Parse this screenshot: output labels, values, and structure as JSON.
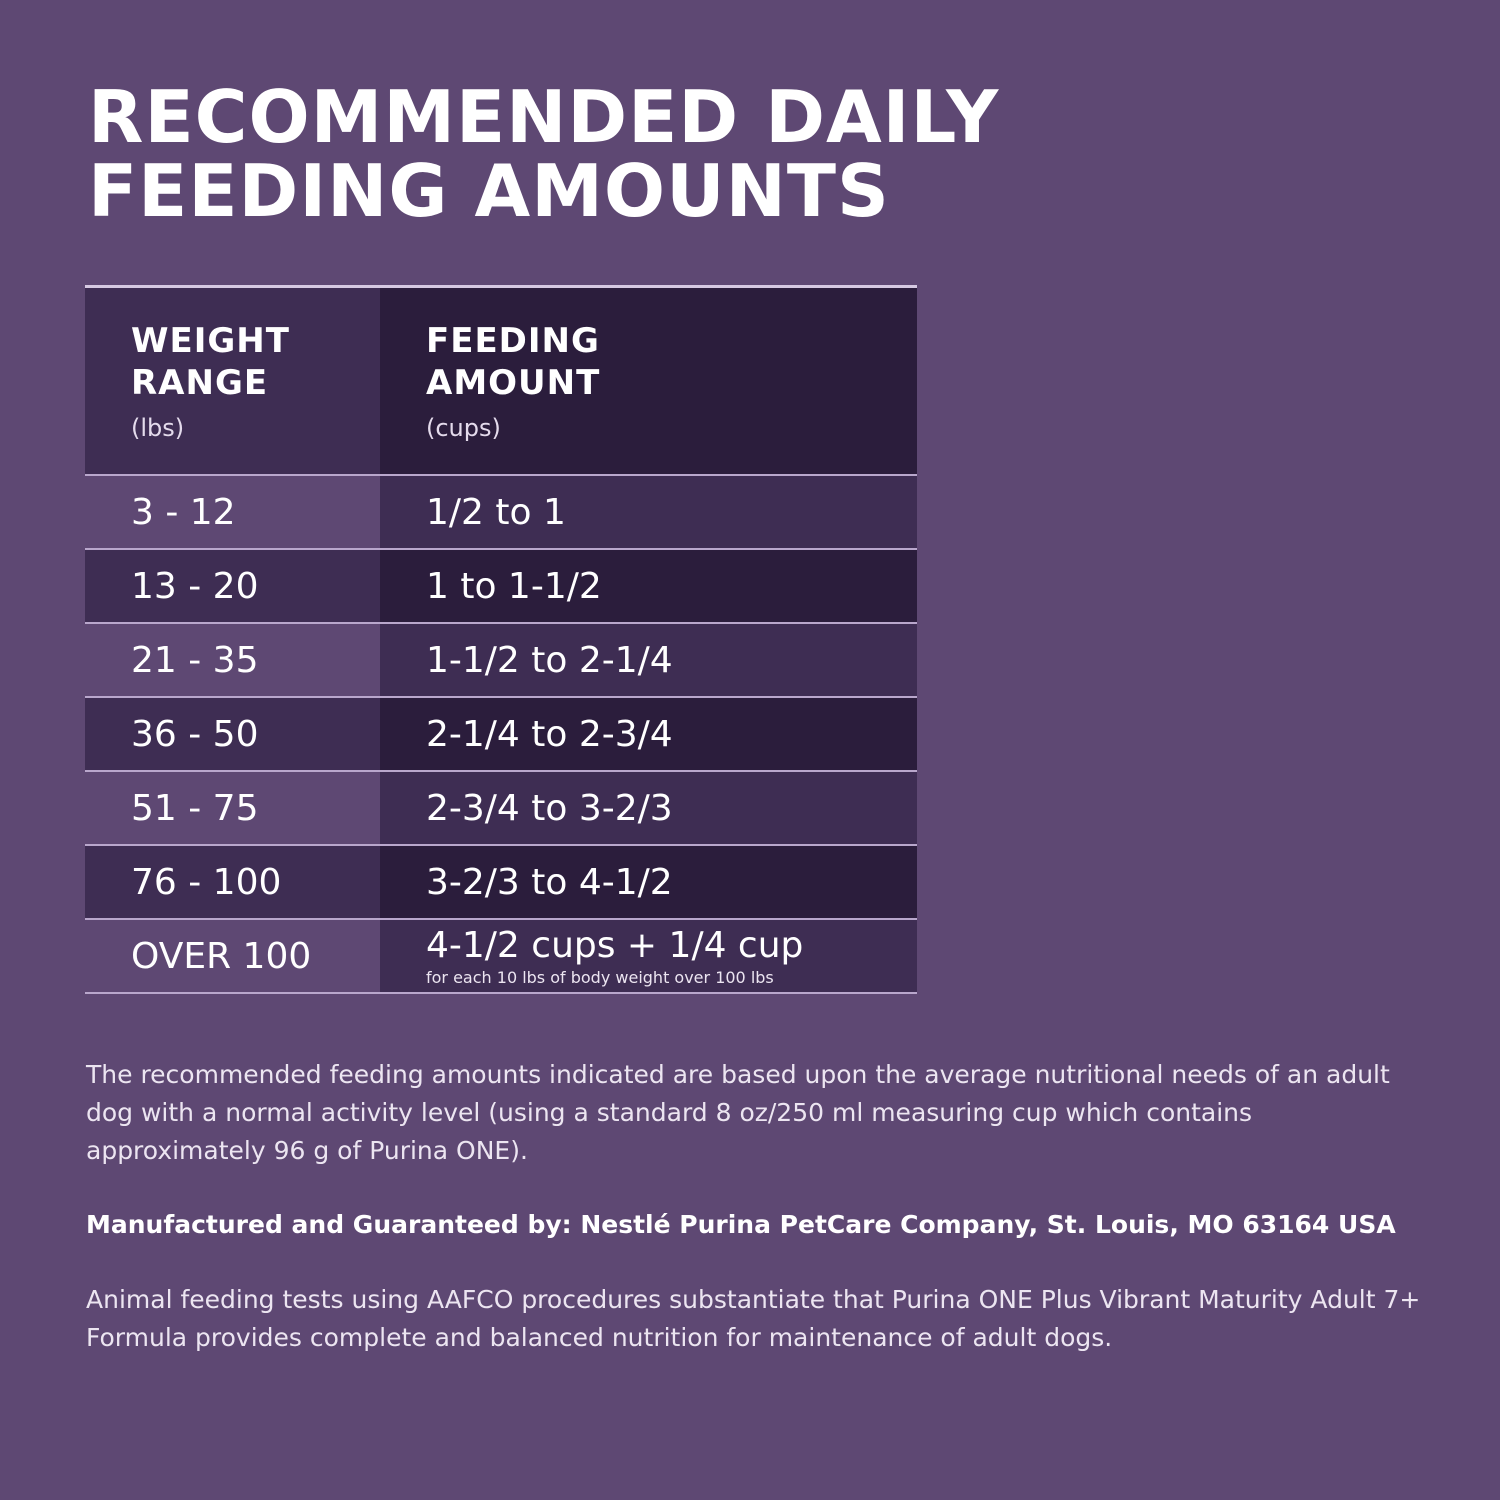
{
  "title": {
    "line1": "RECOMMENDED DAILY",
    "line2": "FEEDING AMOUNTS"
  },
  "table": {
    "headers": [
      {
        "label_line1": "WEIGHT",
        "label_line2": "RANGE",
        "unit": "(lbs)"
      },
      {
        "label_line1": "FEEDING",
        "label_line2": "AMOUNT",
        "unit": "(cups)"
      }
    ],
    "rows": [
      {
        "weight": "3 - 12",
        "amount": "1/2 to 1"
      },
      {
        "weight": "13 - 20",
        "amount": "1 to 1-1/2"
      },
      {
        "weight": "21 - 35",
        "amount": "1-1/2 to 2-1/4"
      },
      {
        "weight": "36 - 50",
        "amount": "2-1/4 to 2-3/4"
      },
      {
        "weight": "51 - 75",
        "amount": "2-3/4 to 3-2/3"
      },
      {
        "weight": "76 - 100",
        "amount": "3-2/3 to 4-1/2"
      },
      {
        "weight": "OVER 100",
        "amount": "4-1/2 cups + 1/4 cup",
        "note": "for each 10 lbs of body weight over 100 lbs"
      }
    ]
  },
  "paragraphs": {
    "disclaimer": "The recommended feeding amounts indicated are based upon the average nutritional needs of an adult dog with a normal activity level (using a standard 8 oz/250 ml measuring cup which contains approximately 96 g of Purina ONE).",
    "manufacturer": "Manufactured and Guaranteed by: Nestlé Purina PetCare Company, St. Louis, MO 63164 USA",
    "aafco": "Animal feeding tests using AAFCO procedures substantiate that Purina ONE Plus Vibrant Maturity Adult 7+ Formula provides complete and balanced nutrition for maintenance of adult dogs."
  },
  "colors": {
    "background": "#5e4873",
    "mid": "#3e2d53",
    "dark": "#2b1d3c",
    "rule": "#b9a7cc"
  }
}
